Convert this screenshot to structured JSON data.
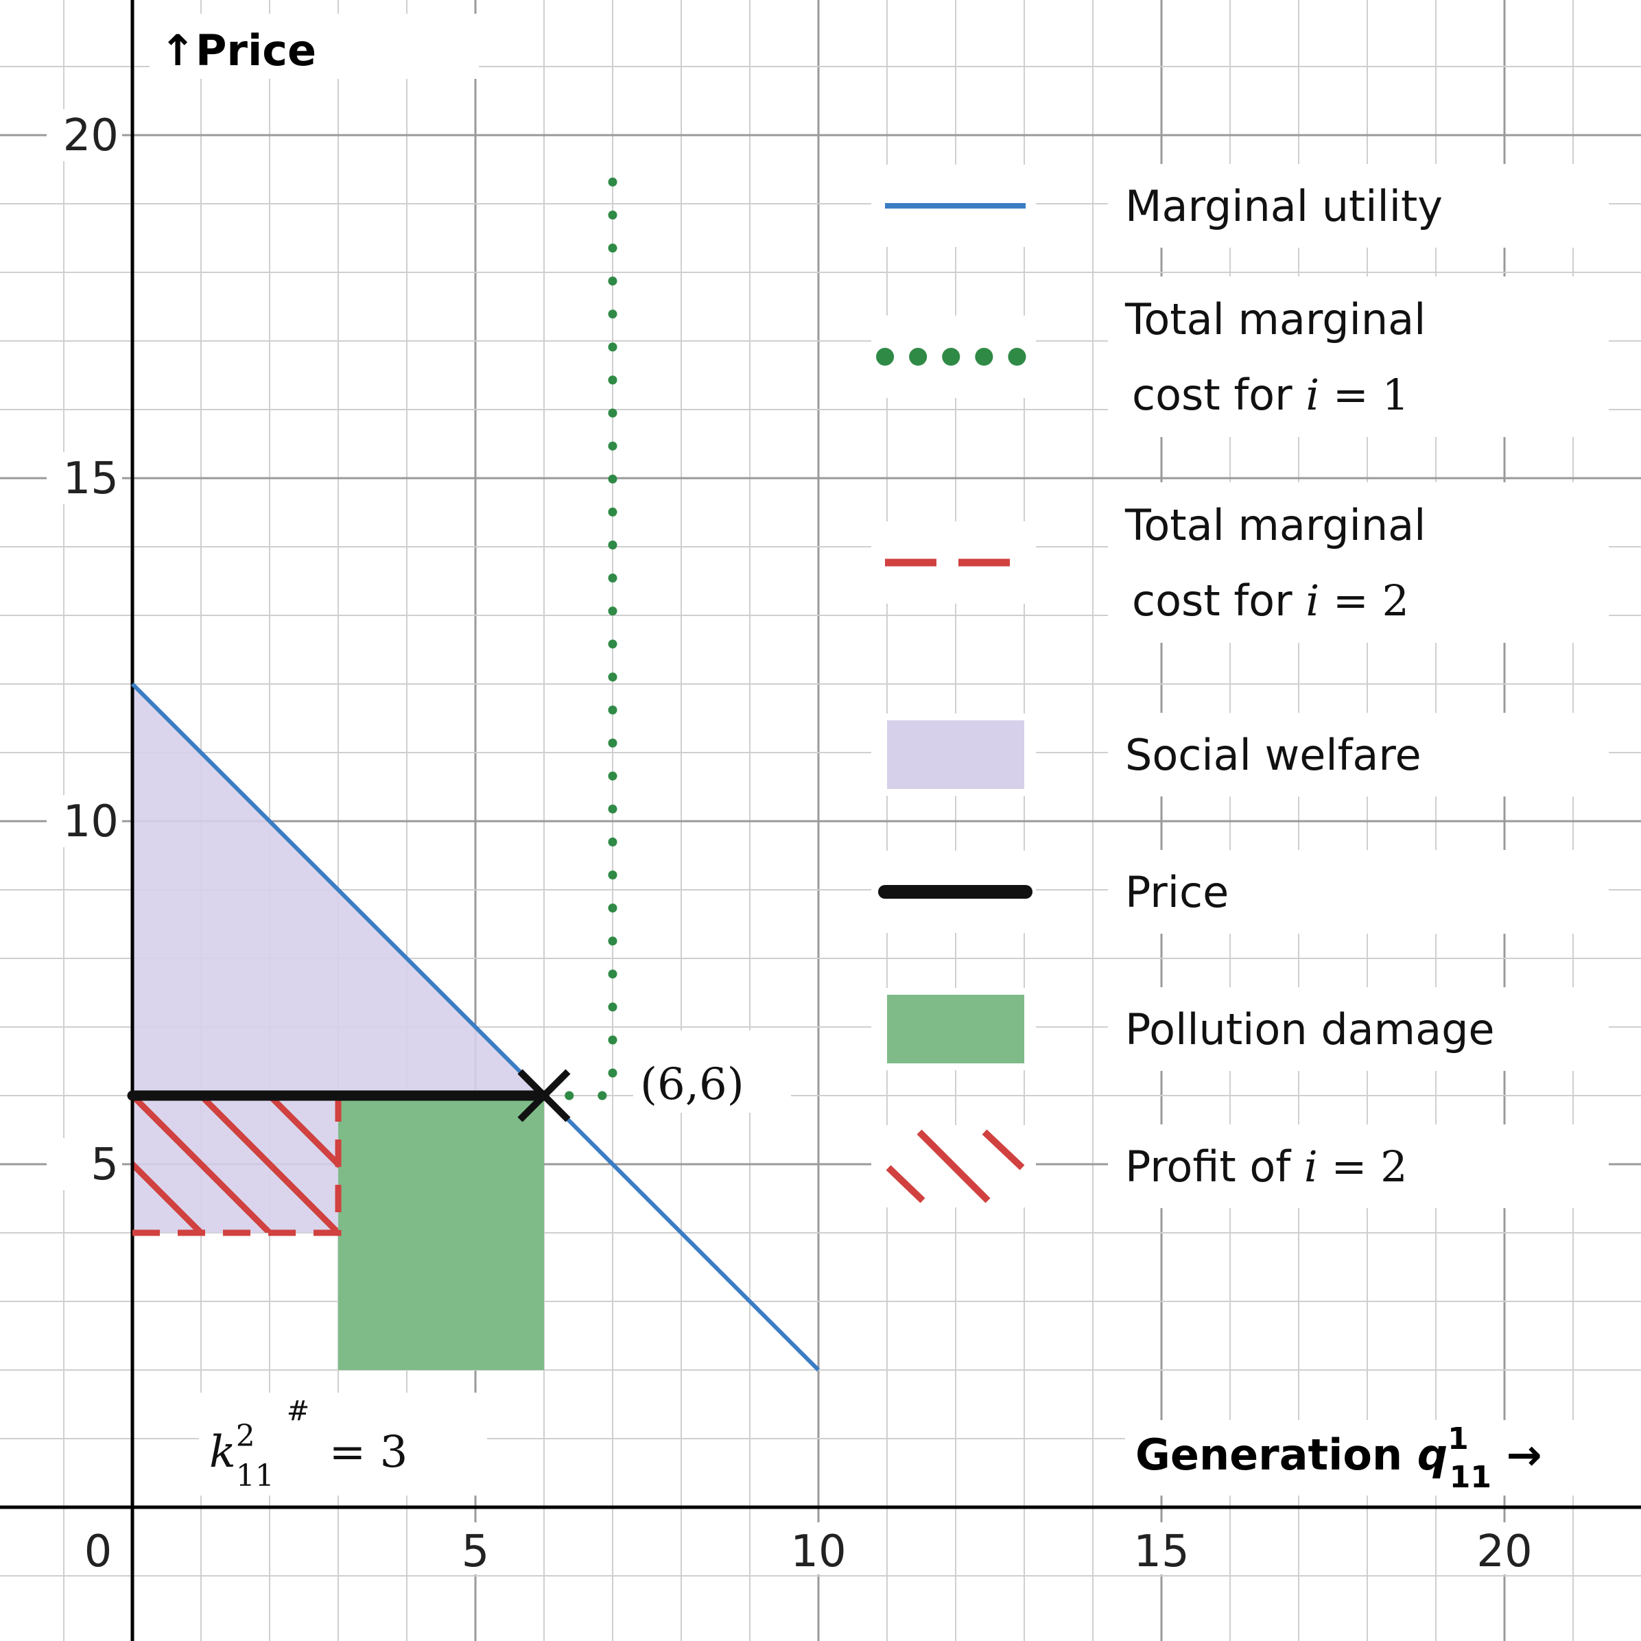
{
  "chart_data": {
    "type": "line",
    "xlim": [
      0,
      22
    ],
    "ylim": [
      -2,
      22
    ],
    "grid": true,
    "minor_grid_step": 1,
    "major_grid_step": 5,
    "x_ticks": [
      0,
      5,
      10,
      15,
      20
    ],
    "y_ticks": [
      5,
      10,
      15,
      20
    ],
    "ylabel": "↑Price",
    "xlabel_text": "Generation ",
    "xlabel_math": "q",
    "xlabel_sup": "1",
    "xlabel_sub": "11",
    "xlabel_arrow": " →",
    "legend_position": "right",
    "colors": {
      "marginal_utility": "#3b7dc4",
      "cost_i1": "#2f8a46",
      "cost_i2": "#d0413f",
      "social_welfare": "#d6d0ea",
      "price": "#111111",
      "pollution": "#7ebb88",
      "profit": "#d0413f"
    },
    "series": [
      {
        "name": "Marginal utility",
        "style": "solid",
        "x": [
          0,
          10
        ],
        "y": [
          12,
          2
        ]
      },
      {
        "name": "Total marginal cost for i = 1",
        "style": "dotted",
        "x": [
          3,
          7,
          7
        ],
        "y": [
          6,
          6,
          19.7
        ]
      },
      {
        "name": "Total marginal cost for i = 2",
        "style": "dashed",
        "x": [
          0,
          3,
          3
        ],
        "y": [
          4,
          4,
          6
        ]
      },
      {
        "name": "Price",
        "style": "thick",
        "x": [
          0,
          6
        ],
        "y": [
          6,
          6
        ]
      }
    ],
    "regions": [
      {
        "name": "Social welfare",
        "polygon": [
          [
            0,
            12
          ],
          [
            6,
            6
          ],
          [
            0,
            6
          ]
        ]
      },
      {
        "name": "Social welfare",
        "polygon": [
          [
            0,
            6
          ],
          [
            3,
            6
          ],
          [
            3,
            4
          ],
          [
            0,
            4
          ]
        ]
      },
      {
        "name": "Pollution damage",
        "x": [
          3,
          6
        ],
        "y": [
          2,
          6
        ]
      },
      {
        "name": "Profit of i = 2",
        "x": [
          0,
          3
        ],
        "y": [
          4,
          6
        ],
        "pattern": "hatched"
      }
    ],
    "annotations": [
      {
        "type": "point",
        "x": 6,
        "y": 6,
        "label": "(6,6)",
        "marker": "x"
      },
      {
        "type": "math",
        "base": "k",
        "sup": "2",
        "sub": "11",
        "extra": "#",
        "rest": " = 3"
      }
    ],
    "legend": [
      {
        "lines": [
          "Marginal utility"
        ]
      },
      {
        "lines": [
          "Total marginal",
          "cost for "
        ],
        "math_var": "i",
        "math_rest": " = 1"
      },
      {
        "lines": [
          "Total marginal",
          "cost for "
        ],
        "math_var": "i",
        "math_rest": " = 2"
      },
      {
        "lines": [
          "Social welfare"
        ]
      },
      {
        "lines": [
          "Price"
        ]
      },
      {
        "lines": [
          "Pollution damage"
        ]
      },
      {
        "lines": [
          "Profit of "
        ],
        "math_var": "i",
        "math_rest": " = 2"
      }
    ]
  }
}
